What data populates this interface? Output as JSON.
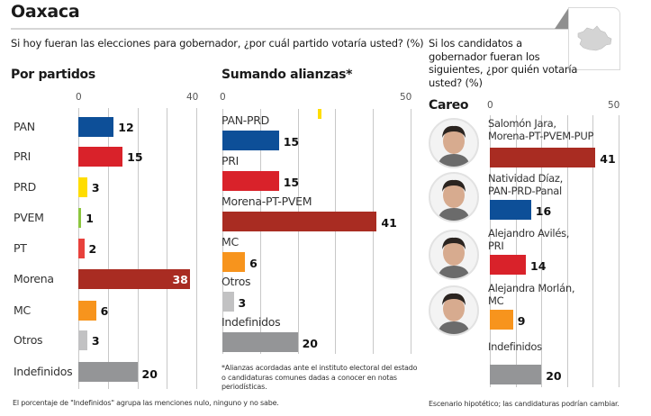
{
  "header": {
    "title": "Oaxaca",
    "question_left": "Si hoy fueran las elecciones para gobernador, ¿por cuál partido votaría usted? (%)",
    "question_right": "Si los candidatos a gobernador fueran los siguientes, ¿por quién votaría usted? (%)",
    "map_icon": "oaxaca-state-map"
  },
  "footnotes": {
    "indefinidos": "El porcentaje de \"Indefinidos\" agrupa las menciones nulo, ninguno y no sabe.",
    "alianzas": "*Alianzas acordadas ante el instituto electoral del estado o candidaturas comunes dadas a conocer en notas periodísticas.",
    "escenario": "Escenario hipotético; las candidaturas podrían cambiar."
  },
  "colors": {
    "PAN": "#0d4f98",
    "PRI": "#d9222a",
    "PRD": "#ffdd00",
    "PVEM": "#8cc63f",
    "PT": "#e8413c",
    "Morena": "#a92c22",
    "MC": "#f7941d",
    "Otros": "#c2c2c3",
    "Indefinidos": "#949597"
  },
  "chart_data": [
    {
      "type": "bar",
      "orientation": "horizontal",
      "title": "Por partidos",
      "categories": [
        "PAN",
        "PRI",
        "PRD",
        "PVEM",
        "PT",
        "Morena",
        "MC",
        "Otros",
        "Indefinidos"
      ],
      "values": [
        12,
        15,
        3,
        1,
        2,
        38,
        6,
        3,
        20
      ],
      "color_keys": [
        "PAN",
        "PRI",
        "PRD",
        "PVEM",
        "PT",
        "Morena",
        "MC",
        "Otros",
        "Indefinidos"
      ],
      "xlim": [
        0,
        40
      ],
      "tick_labels": [
        "0",
        "40"
      ],
      "grid_step": 10,
      "xlabel": "",
      "ylabel": ""
    },
    {
      "type": "bar",
      "orientation": "horizontal",
      "title": "Sumando alianzas*",
      "categories": [
        "PAN-PRD",
        "PRI",
        "Morena-PT-PVEM",
        "MC",
        "Otros",
        "Indefinidos"
      ],
      "values": [
        15,
        15,
        41,
        6,
        3,
        20
      ],
      "color_keys": [
        "PAN",
        "PRI",
        "Morena",
        "MC",
        "Otros",
        "Indefinidos"
      ],
      "xlim": [
        0,
        50
      ],
      "tick_labels": [
        "0",
        "50"
      ],
      "grid_step": 10,
      "xlabel": "",
      "ylabel": ""
    },
    {
      "type": "bar",
      "orientation": "horizontal",
      "title": "Careo",
      "categories": [
        "Salomón Jara, Morena-PT-PVEM-PUP",
        "Natividad Díaz, PAN-PRD-Panal",
        "Alejandro Avilés, PRI",
        "Alejandra Morlán, MC",
        "Indefinidos"
      ],
      "label_lines": [
        [
          "Salomón Jara,",
          "Morena-PT-PVEM-PUP"
        ],
        [
          "Natividad Díaz,",
          "PAN-PRD-Panal"
        ],
        [
          "Alejandro Avilés,",
          "PRI"
        ],
        [
          "Alejandra Morlán,",
          "MC"
        ],
        [
          "Indefinidos"
        ]
      ],
      "has_photo": [
        true,
        true,
        true,
        true,
        false
      ],
      "values": [
        41,
        16,
        14,
        9,
        20
      ],
      "color_keys": [
        "Morena",
        "PAN",
        "PRI",
        "MC",
        "Indefinidos"
      ],
      "xlim": [
        0,
        50
      ],
      "tick_labels": [
        "0",
        "50"
      ],
      "grid_step": 10,
      "xlabel": "",
      "ylabel": ""
    }
  ]
}
